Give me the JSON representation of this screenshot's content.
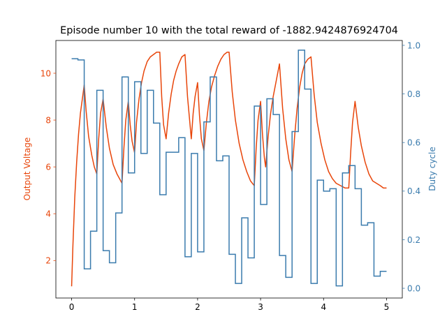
{
  "chart_data": {
    "type": "line",
    "title": "Episode number 10 with the total reward of -1882.9424876924704",
    "xlim": [
      -0.25,
      5.25
    ],
    "x_ticks": [
      "0",
      "1",
      "2",
      "3",
      "4",
      "5"
    ],
    "left_axis": {
      "label": "Output Voltage",
      "color": "#e8450a",
      "ylim": [
        0.4,
        11.4
      ],
      "ticks": [
        "2",
        "4",
        "6",
        "8",
        "10"
      ]
    },
    "right_axis": {
      "label": "Duty cycle",
      "color": "#3a7bad",
      "ylim": [
        -0.04,
        1.02
      ],
      "ticks": [
        "0.0",
        "0.2",
        "0.4",
        "0.6",
        "0.8",
        "1.0"
      ]
    },
    "series": [
      {
        "axis": "left",
        "color": "#e8450a",
        "points": [
          [
            0.0,
            0.9
          ],
          [
            0.02,
            2.6
          ],
          [
            0.05,
            4.7
          ],
          [
            0.08,
            6.2
          ],
          [
            0.11,
            7.4
          ],
          [
            0.14,
            8.3
          ],
          [
            0.17,
            8.9
          ],
          [
            0.2,
            9.5
          ],
          [
            0.23,
            8.4
          ],
          [
            0.27,
            7.3
          ],
          [
            0.32,
            6.5
          ],
          [
            0.36,
            6.0
          ],
          [
            0.4,
            5.7
          ],
          [
            0.43,
            7.2
          ],
          [
            0.46,
            8.3
          ],
          [
            0.5,
            8.9
          ],
          [
            0.55,
            7.7
          ],
          [
            0.6,
            6.8
          ],
          [
            0.66,
            6.1
          ],
          [
            0.72,
            5.7
          ],
          [
            0.78,
            5.4
          ],
          [
            0.8,
            5.3
          ],
          [
            0.83,
            6.8
          ],
          [
            0.86,
            8.0
          ],
          [
            0.9,
            8.8
          ],
          [
            0.93,
            7.8
          ],
          [
            0.96,
            7.1
          ],
          [
            1.0,
            6.6
          ],
          [
            1.03,
            7.9
          ],
          [
            1.07,
            8.9
          ],
          [
            1.11,
            9.6
          ],
          [
            1.15,
            10.1
          ],
          [
            1.2,
            10.5
          ],
          [
            1.25,
            10.7
          ],
          [
            1.3,
            10.8
          ],
          [
            1.35,
            10.9
          ],
          [
            1.4,
            10.9
          ],
          [
            1.43,
            9.0
          ],
          [
            1.46,
            7.8
          ],
          [
            1.5,
            7.2
          ],
          [
            1.54,
            8.3
          ],
          [
            1.58,
            9.1
          ],
          [
            1.62,
            9.7
          ],
          [
            1.66,
            10.1
          ],
          [
            1.7,
            10.4
          ],
          [
            1.75,
            10.7
          ],
          [
            1.8,
            10.8
          ],
          [
            1.84,
            9.0
          ],
          [
            1.88,
            7.8
          ],
          [
            1.9,
            7.2
          ],
          [
            1.93,
            8.3
          ],
          [
            1.96,
            9.0
          ],
          [
            2.0,
            9.6
          ],
          [
            2.03,
            8.2
          ],
          [
            2.06,
            7.2
          ],
          [
            2.1,
            6.7
          ],
          [
            2.14,
            7.9
          ],
          [
            2.18,
            8.8
          ],
          [
            2.22,
            9.4
          ],
          [
            2.27,
            9.9
          ],
          [
            2.32,
            10.3
          ],
          [
            2.37,
            10.6
          ],
          [
            2.42,
            10.8
          ],
          [
            2.47,
            10.9
          ],
          [
            2.5,
            10.9
          ],
          [
            2.55,
            9.2
          ],
          [
            2.6,
            8.0
          ],
          [
            2.66,
            7.0
          ],
          [
            2.72,
            6.3
          ],
          [
            2.78,
            5.8
          ],
          [
            2.84,
            5.4
          ],
          [
            2.9,
            5.2
          ],
          [
            2.93,
            6.8
          ],
          [
            2.96,
            8.0
          ],
          [
            3.0,
            8.8
          ],
          [
            3.03,
            7.4
          ],
          [
            3.06,
            6.4
          ],
          [
            3.08,
            6.0
          ],
          [
            3.12,
            7.3
          ],
          [
            3.16,
            8.3
          ],
          [
            3.2,
            9.0
          ],
          [
            3.25,
            9.7
          ],
          [
            3.3,
            10.4
          ],
          [
            3.35,
            8.5
          ],
          [
            3.4,
            7.2
          ],
          [
            3.45,
            6.3
          ],
          [
            3.5,
            5.8
          ],
          [
            3.54,
            7.3
          ],
          [
            3.58,
            8.5
          ],
          [
            3.62,
            9.4
          ],
          [
            3.66,
            10.0
          ],
          [
            3.7,
            10.4
          ],
          [
            3.75,
            10.6
          ],
          [
            3.8,
            10.7
          ],
          [
            3.85,
            9.1
          ],
          [
            3.9,
            7.9
          ],
          [
            3.96,
            7.0
          ],
          [
            4.02,
            6.3
          ],
          [
            4.08,
            5.8
          ],
          [
            4.14,
            5.5
          ],
          [
            4.2,
            5.3
          ],
          [
            4.27,
            5.2
          ],
          [
            4.34,
            5.1
          ],
          [
            4.4,
            5.1
          ],
          [
            4.43,
            6.6
          ],
          [
            4.46,
            7.9
          ],
          [
            4.5,
            8.8
          ],
          [
            4.55,
            7.7
          ],
          [
            4.6,
            6.9
          ],
          [
            4.66,
            6.2
          ],
          [
            4.72,
            5.7
          ],
          [
            4.78,
            5.4
          ],
          [
            4.84,
            5.3
          ],
          [
            4.9,
            5.2
          ],
          [
            4.95,
            5.1
          ],
          [
            5.0,
            5.1
          ]
        ]
      },
      {
        "axis": "right",
        "color": "#3a7bad",
        "steps": [
          [
            0.0,
            0.945
          ],
          [
            0.1,
            0.94
          ],
          [
            0.2,
            0.08
          ],
          [
            0.3,
            0.235
          ],
          [
            0.4,
            0.815
          ],
          [
            0.5,
            0.155
          ],
          [
            0.6,
            0.105
          ],
          [
            0.7,
            0.31
          ],
          [
            0.8,
            0.87
          ],
          [
            0.9,
            0.475
          ],
          [
            1.0,
            0.85
          ],
          [
            1.1,
            0.555
          ],
          [
            1.2,
            0.815
          ],
          [
            1.3,
            0.68
          ],
          [
            1.4,
            0.385
          ],
          [
            1.5,
            0.56
          ],
          [
            1.7,
            0.62
          ],
          [
            1.8,
            0.13
          ],
          [
            1.9,
            0.555
          ],
          [
            2.0,
            0.15
          ],
          [
            2.1,
            0.685
          ],
          [
            2.2,
            0.87
          ],
          [
            2.3,
            0.525
          ],
          [
            2.4,
            0.545
          ],
          [
            2.5,
            0.14
          ],
          [
            2.6,
            0.02
          ],
          [
            2.7,
            0.29
          ],
          [
            2.8,
            0.125
          ],
          [
            2.9,
            0.75
          ],
          [
            3.0,
            0.345
          ],
          [
            3.1,
            0.78
          ],
          [
            3.2,
            0.715
          ],
          [
            3.3,
            0.135
          ],
          [
            3.4,
            0.045
          ],
          [
            3.5,
            0.645
          ],
          [
            3.6,
            0.98
          ],
          [
            3.7,
            0.82
          ],
          [
            3.8,
            0.02
          ],
          [
            3.9,
            0.445
          ],
          [
            4.0,
            0.4
          ],
          [
            4.1,
            0.41
          ],
          [
            4.2,
            0.01
          ],
          [
            4.3,
            0.475
          ],
          [
            4.4,
            0.505
          ],
          [
            4.5,
            0.41
          ],
          [
            4.6,
            0.26
          ],
          [
            4.7,
            0.27
          ],
          [
            4.8,
            0.05
          ],
          [
            4.9,
            0.07
          ],
          [
            5.0,
            0.07
          ]
        ]
      }
    ]
  }
}
